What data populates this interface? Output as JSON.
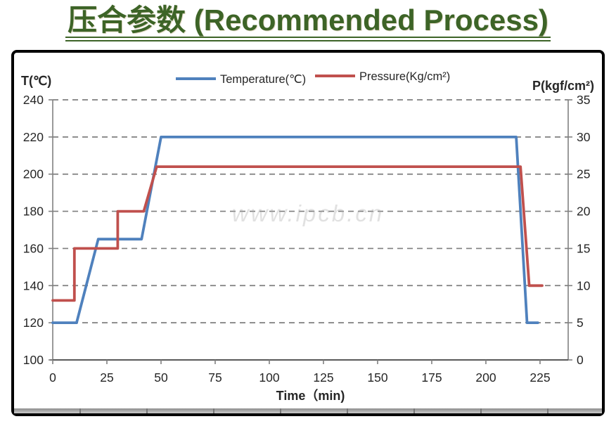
{
  "page": {
    "title": "压合参数 (Recommended Process)",
    "title_color": "#3d6427"
  },
  "watermark": "www.ipcb.cn",
  "chart_data": {
    "type": "line",
    "title": "",
    "xlabel": "Time（min)",
    "x_ticks": [
      0,
      25,
      50,
      75,
      100,
      125,
      150,
      175,
      200,
      225
    ],
    "xlim": [
      0,
      238
    ],
    "grid": "horizontal-dashed",
    "legend_position": "top-center",
    "left_axis": {
      "label": "T(℃)",
      "ticks": [
        240,
        220,
        200,
        180,
        160,
        140,
        120,
        100
      ],
      "range": [
        100,
        240
      ]
    },
    "right_axis": {
      "label": "P(kgf/cm²)",
      "ticks": [
        35,
        30,
        25,
        20,
        15,
        10,
        5,
        0
      ],
      "range": [
        0,
        35
      ]
    },
    "legend": [
      {
        "label": "Temperature(℃)",
        "color": "#4F81BD"
      },
      {
        "label": "Pressure(Kg/cm²)",
        "color": "#C0504D"
      }
    ],
    "series": [
      {
        "name": "Temperature(℃)",
        "axis": "left",
        "color": "#4F81BD",
        "points": [
          [
            0,
            120
          ],
          [
            11,
            120
          ],
          [
            21,
            165
          ],
          [
            41,
            165
          ],
          [
            50,
            220
          ],
          [
            214,
            220
          ],
          [
            219,
            120
          ],
          [
            224,
            120
          ]
        ]
      },
      {
        "name": "Pressure(Kg/cm²)",
        "axis": "right",
        "color": "#C0504D",
        "points": [
          [
            0,
            8
          ],
          [
            10,
            8
          ],
          [
            10,
            15
          ],
          [
            30,
            15
          ],
          [
            30,
            20
          ],
          [
            42,
            20
          ],
          [
            48,
            26
          ],
          [
            216,
            26
          ],
          [
            220,
            10
          ],
          [
            226,
            10
          ]
        ]
      }
    ]
  },
  "colors": {
    "gridline": "#7f7f7f",
    "axis": "#808080",
    "x_axis": "#595959"
  }
}
